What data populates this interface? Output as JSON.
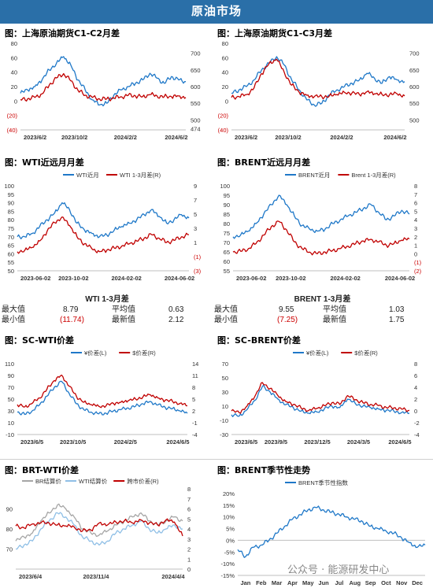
{
  "header": "原油市场",
  "panels": [
    {
      "title": "图：上海原油期货C1-C2月差"
    },
    {
      "title": "图：上海原油期货C1-C3月差"
    },
    {
      "title": "图：WTI近远月月差"
    },
    {
      "title": "图：BRENT近远月月差"
    },
    {
      "title": "图：SC-WTI价差"
    },
    {
      "title": "图：SC-BRENT价差"
    },
    {
      "title": "图：BRT-WTI价差"
    },
    {
      "title": "图：BRENT季节性走势"
    }
  ],
  "stats": [
    {
      "title": "WTI 1-3月差",
      "max_label": "最大值",
      "max": "8.79",
      "avg_label": "平均值",
      "avg": "0.63",
      "min_label": "最小值",
      "min": "(11.74)",
      "latest_label": "最新值",
      "latest": "2.12"
    },
    {
      "title": "BRENT 1-3月差",
      "max_label": "最大值",
      "max": "9.55",
      "avg_label": "平均值",
      "avg": "1.03",
      "min_label": "最小值",
      "min": "(7.25)",
      "latest_label": "最新值",
      "latest": "1.75"
    }
  ],
  "watermark": "公众号 · 能源研发中心",
  "colors": {
    "header": "#2a6fa8",
    "blue": "#1f78c8",
    "red": "#c00000",
    "gray": "#a6a6a6",
    "lightblue": "#8fbfe6"
  },
  "chart_data": [
    {
      "type": "line",
      "ylim_left": [
        -40,
        80
      ],
      "ylim_right": [
        470,
        730
      ],
      "yticks_left": [
        "80",
        "60",
        "40",
        "20",
        "0",
        "(20)",
        "(40)"
      ],
      "yticks_right": [
        "700",
        "650",
        "600",
        "550",
        "500",
        "474"
      ],
      "xticks": [
        "2023/6/2",
        "2023/10/2",
        "2024/2/2",
        "2024/6/2"
      ],
      "series": [
        {
          "axis": "right",
          "color": "blue",
          "values": [
            580,
            590,
            600,
            620,
            650,
            670,
            690,
            665,
            620,
            590,
            560,
            545,
            550,
            575,
            590,
            600,
            610,
            620,
            640,
            625,
            610,
            630,
            620,
            615
          ]
        },
        {
          "axis": "left",
          "color": "red",
          "values": [
            2,
            3,
            5,
            10,
            22,
            32,
            38,
            28,
            15,
            8,
            5,
            3,
            3,
            4,
            6,
            8,
            7,
            6,
            9,
            7,
            6,
            6,
            7,
            5
          ]
        }
      ]
    },
    {
      "type": "line",
      "ylim_left": [
        -40,
        80
      ],
      "ylim_right": [
        470,
        730
      ],
      "yticks_left": [
        "80",
        "60",
        "40",
        "20",
        "0",
        "(20)",
        "(40)"
      ],
      "yticks_right": [
        "700",
        "650",
        "600",
        "550",
        "500"
      ],
      "xticks": [
        "2023/6/2",
        "2023/10/2",
        "2024/2/2",
        "2024/6/2"
      ],
      "series": [
        {
          "axis": "right",
          "color": "blue",
          "values": [
            580,
            590,
            600,
            620,
            650,
            670,
            690,
            665,
            620,
            590,
            560,
            545,
            550,
            575,
            590,
            600,
            610,
            620,
            640,
            625,
            610,
            630,
            620,
            615
          ]
        },
        {
          "axis": "left",
          "color": "red",
          "values": [
            5,
            6,
            9,
            18,
            38,
            52,
            58,
            40,
            22,
            12,
            8,
            6,
            6,
            7,
            9,
            12,
            11,
            9,
            13,
            10,
            9,
            9,
            10,
            7
          ]
        }
      ]
    },
    {
      "type": "line",
      "ylim_left": [
        50,
        100
      ],
      "ylim_right": [
        -3,
        9
      ],
      "yticks_left": [
        "100",
        "95",
        "90",
        "85",
        "80",
        "75",
        "70",
        "65",
        "60",
        "55",
        "50"
      ],
      "yticks_right": [
        "9",
        "7",
        "5",
        "3",
        "1",
        "(1)",
        "(3)"
      ],
      "xticks": [
        "2023-06-02",
        "2023-10-02",
        "2024-02-02",
        "2024-06-02"
      ],
      "legend": [
        "WTI近月",
        "WTI 1-3月差(R)"
      ],
      "series": [
        {
          "axis": "left",
          "color": "blue",
          "values": [
            70,
            70,
            72,
            76,
            80,
            84,
            90,
            86,
            78,
            74,
            72,
            70,
            71,
            74,
            76,
            78,
            80,
            83,
            86,
            82,
            78,
            80,
            83,
            81
          ]
        },
        {
          "axis": "right",
          "color": "red",
          "values": [
            -0.3,
            -0.1,
            0.3,
            1.2,
            2.6,
            3.8,
            4.6,
            3.4,
            1.8,
            0.8,
            0.1,
            -0.3,
            -0.1,
            0.2,
            0.5,
            0.8,
            1.2,
            1.6,
            2.1,
            1.6,
            1.0,
            1.3,
            1.8,
            2.1
          ]
        }
      ]
    },
    {
      "type": "line",
      "ylim_left": [
        55,
        100
      ],
      "ylim_right": [
        -2,
        8
      ],
      "yticks_left": [
        "100",
        "95",
        "90",
        "85",
        "80",
        "75",
        "70",
        "65",
        "60",
        "55"
      ],
      "yticks_right": [
        "8",
        "7",
        "6",
        "5",
        "4",
        "3",
        "2",
        "1",
        "0",
        "(1)",
        "(2)"
      ],
      "xticks": [
        "2023-06-02",
        "2023-10-02",
        "2024-02-02",
        "2024-06-02"
      ],
      "legend": [
        "BRENT近月",
        "Brent 1-3月差(R)"
      ],
      "series": [
        {
          "axis": "left",
          "color": "blue",
          "values": [
            73,
            74,
            76,
            80,
            85,
            90,
            95,
            90,
            84,
            79,
            77,
            76,
            77,
            80,
            82,
            84,
            86,
            88,
            90,
            86,
            82,
            84,
            87,
            85
          ]
        },
        {
          "axis": "right",
          "color": "red",
          "values": [
            0.2,
            0.3,
            0.6,
            1.2,
            2.2,
            3.2,
            3.8,
            2.8,
            1.4,
            0.6,
            0.2,
            0.0,
            0.2,
            0.4,
            0.6,
            0.9,
            1.2,
            1.5,
            1.7,
            1.4,
            1.0,
            1.2,
            1.6,
            1.75
          ]
        }
      ]
    },
    {
      "type": "line",
      "ylim_left": [
        -10,
        110
      ],
      "ylim_right": [
        -4,
        14
      ],
      "yticks_left": [
        "110",
        "90",
        "70",
        "50",
        "30",
        "10",
        "-10"
      ],
      "yticks_right": [
        "14",
        "11",
        "8",
        "5",
        "2",
        "-1",
        "-4"
      ],
      "xticks": [
        "2023/6/5",
        "2023/10/5",
        "2024/2/5",
        "2024/6/5"
      ],
      "legend": [
        "¥价差(L)",
        "$价差(R)"
      ],
      "series": [
        {
          "axis": "left",
          "color": "blue",
          "values": [
            28,
            24,
            30,
            40,
            55,
            70,
            80,
            60,
            42,
            32,
            28,
            25,
            26,
            30,
            32,
            35,
            38,
            42,
            46,
            40,
            36,
            34,
            30,
            26
          ]
        },
        {
          "axis": "right",
          "color": "red",
          "values": [
            3.6,
            3.0,
            3.9,
            5.3,
            7.5,
            9.7,
            11.1,
            8.3,
            5.7,
            4.2,
            3.6,
            3.2,
            3.3,
            3.9,
            4.2,
            4.6,
            5.0,
            5.6,
            6.1,
            5.3,
            4.7,
            4.4,
            3.9,
            3.3
          ]
        }
      ]
    },
    {
      "type": "line",
      "ylim_left": [
        -30,
        70
      ],
      "ylim_right": [
        -4,
        8
      ],
      "yticks_left": [
        "70",
        "50",
        "30",
        "10",
        "-10",
        "-30"
      ],
      "yticks_right": [
        "8",
        "6",
        "4",
        "2",
        "0",
        "-2",
        "-4"
      ],
      "xticks": [
        "2023/6/5",
        "2023/9/5",
        "2023/12/5",
        "2024/3/5",
        "2024/6/5"
      ],
      "legend": [
        "¥价差(L)",
        "$价差(R)"
      ],
      "series": [
        {
          "axis": "left",
          "color": "blue",
          "values": [
            -2,
            -4,
            5,
            18,
            38,
            30,
            20,
            12,
            8,
            3,
            0,
            2,
            6,
            10,
            8,
            20,
            14,
            10,
            8,
            6,
            4,
            3,
            1,
            0
          ]
        },
        {
          "axis": "right",
          "color": "red",
          "values": [
            0,
            -0.3,
            0.8,
            2.4,
            4.8,
            3.8,
            2.6,
            1.6,
            1.1,
            0.5,
            0.1,
            0.4,
            0.9,
            1.4,
            1.1,
            2.6,
            1.9,
            1.4,
            1.1,
            0.9,
            0.6,
            0.5,
            0.3,
            0.1
          ]
        }
      ]
    },
    {
      "type": "line",
      "ylim_left": [
        60,
        100
      ],
      "ylim_right": [
        0,
        8
      ],
      "yticks_left": [
        "90",
        "80",
        "70"
      ],
      "yticks_right": [
        "8",
        "7",
        "6",
        "5",
        "4",
        "3",
        "2",
        "1",
        "0"
      ],
      "xticks": [
        "2023/6/4",
        "2023/11/4",
        "2024/4/4"
      ],
      "legend": [
        "BR结算价",
        "WTI结算价",
        "跨市价差(R)"
      ],
      "series": [
        {
          "axis": "left",
          "color": "gray",
          "values": [
            74,
            76,
            78,
            84,
            88,
            92,
            90,
            86,
            80,
            78,
            77,
            79,
            82,
            84,
            86,
            88,
            84,
            82,
            84,
            86,
            84
          ]
        },
        {
          "axis": "left",
          "color": "lightblue",
          "values": [
            70,
            72,
            74,
            80,
            84,
            88,
            86,
            82,
            76,
            74,
            72,
            74,
            78,
            80,
            82,
            84,
            80,
            78,
            80,
            82,
            80
          ]
        },
        {
          "axis": "right",
          "color": "red",
          "values": [
            4.3,
            4.1,
            4.5,
            4.6,
            4.6,
            4.4,
            4.3,
            4.2,
            3.8,
            3.9,
            4.6,
            4.4,
            4.7,
            4.8,
            4.6,
            4.9,
            4.6,
            4.4,
            4.9,
            4.7,
            3.3
          ]
        }
      ]
    },
    {
      "type": "line",
      "ylim_left": [
        -15,
        20
      ],
      "yticks_left": [
        "20%",
        "15%",
        "10%",
        "5%",
        "0%",
        "-5%",
        "-10%",
        "-15%"
      ],
      "xticks": [
        "Jan",
        "Feb",
        "Mar",
        "Apr",
        "May",
        "Jun",
        "Jul",
        "Aug",
        "Sep",
        "Oct",
        "Nov",
        "Dec"
      ],
      "legend": [
        "BRENT季节性指数"
      ],
      "series": [
        {
          "axis": "left",
          "color": "blue",
          "values": [
            -4,
            -7,
            -3,
            -2,
            0,
            3,
            6,
            9,
            11,
            13,
            14,
            13,
            12,
            11,
            10,
            9,
            8,
            6,
            5,
            4,
            3,
            1,
            -1,
            -3,
            -2
          ]
        }
      ]
    }
  ]
}
